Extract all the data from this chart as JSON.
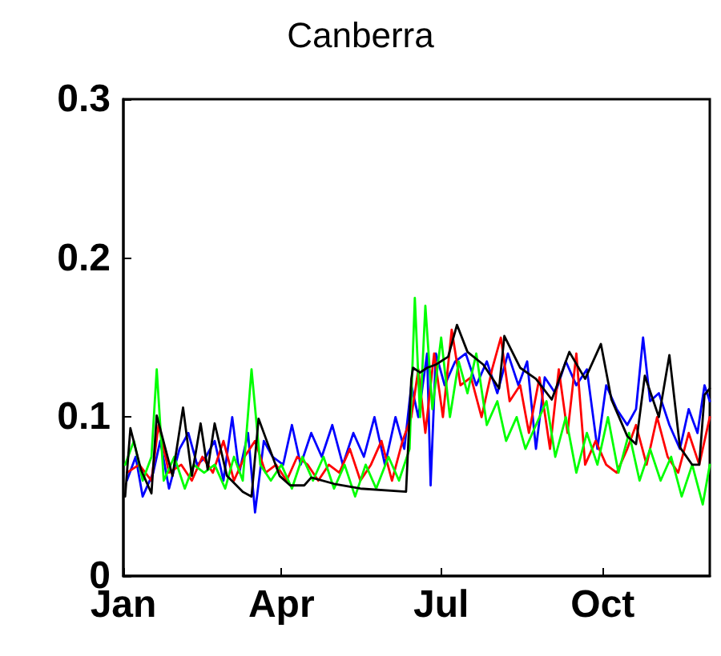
{
  "chart_data": {
    "type": "line",
    "title": "Canberra",
    "xlim": [
      "--01-01",
      "--12-01"
    ],
    "xticks": [
      {
        "value": "--01-01",
        "label": "Jan"
      },
      {
        "value": "--04-01",
        "label": "Apr"
      },
      {
        "value": "--07-01",
        "label": "Jul"
      },
      {
        "value": "--10-01",
        "label": "Oct"
      }
    ],
    "ylim": [
      0,
      0.3
    ],
    "yticks": [
      0,
      0.1,
      0.2,
      0.3
    ],
    "grid": false,
    "marker": "none",
    "line_style": "solid",
    "series": [
      {
        "color": "#0000ff",
        "x": [
          "--01-03",
          "--01-08",
          "--01-12",
          "--01-18",
          "--01-22",
          "--01-27",
          "--02-02",
          "--02-07",
          "--02-12",
          "--02-17",
          "--02-22",
          "--02-27",
          "--03-04",
          "--03-08",
          "--03-13",
          "--03-17",
          "--03-22",
          "--03-27",
          "--04-02",
          "--04-07",
          "--04-12",
          "--04-18",
          "--04-24",
          "--04-30",
          "--05-06",
          "--05-12",
          "--05-18",
          "--05-24",
          "--05-30",
          "--06-05",
          "--06-10",
          "--06-14",
          "--06-18",
          "--06-23",
          "--06-25",
          "--06-28",
          "--07-03",
          "--07-09",
          "--07-15",
          "--07-21",
          "--07-27",
          "--08-02",
          "--08-08",
          "--08-14",
          "--08-19",
          "--08-24",
          "--08-29",
          "--09-04",
          "--09-10",
          "--09-16",
          "--09-22",
          "--09-28",
          "--10-03",
          "--10-09",
          "--10-15",
          "--10-20",
          "--10-24",
          "--10-28",
          "--11-02",
          "--11-08",
          "--11-14",
          "--11-19",
          "--11-24",
          "--11-28",
          "--12-01"
        ],
        "values": [
          0.06,
          0.075,
          0.05,
          0.065,
          0.085,
          0.055,
          0.08,
          0.09,
          0.07,
          0.075,
          0.085,
          0.06,
          0.1,
          0.065,
          0.09,
          0.04,
          0.085,
          0.075,
          0.07,
          0.095,
          0.07,
          0.09,
          0.075,
          0.095,
          0.07,
          0.09,
          0.075,
          0.1,
          0.07,
          0.1,
          0.08,
          0.12,
          0.1,
          0.14,
          0.057,
          0.14,
          0.12,
          0.135,
          0.14,
          0.12,
          0.135,
          0.115,
          0.14,
          0.12,
          0.135,
          0.08,
          0.125,
          0.115,
          0.135,
          0.12,
          0.13,
          0.08,
          0.12,
          0.105,
          0.095,
          0.105,
          0.15,
          0.11,
          0.115,
          0.095,
          0.08,
          0.105,
          0.09,
          0.12,
          0.11
        ]
      },
      {
        "color": "#ff0000",
        "x": [
          "--01-03",
          "--01-10",
          "--01-17",
          "--01-21",
          "--01-27",
          "--02-03",
          "--02-09",
          "--02-15",
          "--02-21",
          "--02-27",
          "--03-05",
          "--03-11",
          "--03-17",
          "--03-23",
          "--03-29",
          "--04-04",
          "--04-10",
          "--04-16",
          "--04-22",
          "--04-28",
          "--05-04",
          "--05-10",
          "--05-16",
          "--05-22",
          "--05-28",
          "--06-03",
          "--06-09",
          "--06-14",
          "--06-18",
          "--06-22",
          "--06-27",
          "--07-02",
          "--07-07",
          "--07-12",
          "--07-18",
          "--07-24",
          "--07-30",
          "--08-04",
          "--08-09",
          "--08-15",
          "--08-20",
          "--08-26",
          "--09-01",
          "--09-06",
          "--09-11",
          "--09-16",
          "--09-21",
          "--09-27",
          "--10-03",
          "--10-09",
          "--10-15",
          "--10-20",
          "--10-26",
          "--11-01",
          "--11-07",
          "--11-13",
          "--11-19",
          "--11-25",
          "--12-01"
        ],
        "values": [
          0.065,
          0.07,
          0.06,
          0.095,
          0.065,
          0.07,
          0.06,
          0.075,
          0.065,
          0.085,
          0.06,
          0.075,
          0.085,
          0.065,
          0.07,
          0.06,
          0.075,
          0.07,
          0.06,
          0.07,
          0.065,
          0.08,
          0.06,
          0.07,
          0.085,
          0.06,
          0.085,
          0.1,
          0.13,
          0.09,
          0.14,
          0.1,
          0.155,
          0.12,
          0.125,
          0.1,
          0.13,
          0.15,
          0.11,
          0.12,
          0.09,
          0.125,
          0.08,
          0.13,
          0.09,
          0.14,
          0.07,
          0.085,
          0.07,
          0.065,
          0.08,
          0.095,
          0.07,
          0.1,
          0.075,
          0.065,
          0.09,
          0.07,
          0.1
        ]
      },
      {
        "color": "#00ff00",
        "x": [
          "--01-02",
          "--01-07",
          "--01-12",
          "--01-17",
          "--01-20",
          "--01-24",
          "--01-30",
          "--02-05",
          "--02-10",
          "--02-16",
          "--02-22",
          "--02-28",
          "--03-05",
          "--03-10",
          "--03-15",
          "--03-20",
          "--03-26",
          "--04-01",
          "--04-07",
          "--04-13",
          "--04-19",
          "--04-25",
          "--05-01",
          "--05-07",
          "--05-13",
          "--05-19",
          "--05-25",
          "--06-01",
          "--06-07",
          "--06-13",
          "--06-16",
          "--06-19",
          "--06-22",
          "--06-26",
          "--07-01",
          "--07-06",
          "--07-11",
          "--07-16",
          "--07-21",
          "--07-27",
          "--08-02",
          "--08-07",
          "--08-13",
          "--08-18",
          "--08-24",
          "--08-30",
          "--09-04",
          "--09-10",
          "--09-16",
          "--09-22",
          "--09-28",
          "--10-04",
          "--10-10",
          "--10-16",
          "--10-22",
          "--10-28",
          "--11-03",
          "--11-09",
          "--11-15",
          "--11-21",
          "--11-27",
          "--12-01"
        ],
        "values": [
          0.07,
          0.085,
          0.06,
          0.075,
          0.13,
          0.06,
          0.075,
          0.055,
          0.07,
          0.065,
          0.07,
          0.055,
          0.075,
          0.06,
          0.13,
          0.07,
          0.06,
          0.07,
          0.055,
          0.075,
          0.06,
          0.075,
          0.055,
          0.07,
          0.05,
          0.07,
          0.055,
          0.075,
          0.06,
          0.08,
          0.175,
          0.1,
          0.17,
          0.105,
          0.15,
          0.1,
          0.135,
          0.115,
          0.14,
          0.095,
          0.11,
          0.085,
          0.1,
          0.08,
          0.095,
          0.11,
          0.075,
          0.1,
          0.065,
          0.09,
          0.07,
          0.1,
          0.065,
          0.09,
          0.06,
          0.08,
          0.06,
          0.075,
          0.05,
          0.07,
          0.045,
          0.07
        ]
      },
      {
        "color": "#000000",
        "x": [
          "--01-02",
          "--01-05",
          "--01-11",
          "--01-17",
          "--01-20",
          "--01-29",
          "--02-04",
          "--02-09",
          "--02-14",
          "--02-18",
          "--02-22",
          "--03-01",
          "--03-10",
          "--03-15",
          "--03-19",
          "--03-24",
          "--03-31",
          "--04-06",
          "--04-14",
          "--04-18",
          "--05-01",
          "--05-16",
          "--06-11",
          "--06-14",
          "--06-15",
          "--06-19",
          "--06-23",
          "--06-28",
          "--07-05",
          "--07-10",
          "--07-16",
          "--07-25",
          "--08-03",
          "--08-06",
          "--08-15",
          "--08-24",
          "--09-02",
          "--09-12",
          "--09-21",
          "--09-30",
          "--10-06",
          "--10-15",
          "--10-20",
          "--10-25",
          "--11-02",
          "--11-08",
          "--11-14",
          "--11-21",
          "--11-25",
          "--11-28",
          "--12-01"
        ],
        "values": [
          0.05,
          0.093,
          0.067,
          0.052,
          0.101,
          0.063,
          0.106,
          0.063,
          0.096,
          0.067,
          0.096,
          0.063,
          0.053,
          0.05,
          0.099,
          0.084,
          0.063,
          0.057,
          0.057,
          0.062,
          0.058,
          0.055,
          0.053,
          0.124,
          0.131,
          0.128,
          0.131,
          0.133,
          0.138,
          0.158,
          0.141,
          0.133,
          0.118,
          0.151,
          0.131,
          0.124,
          0.111,
          0.141,
          0.124,
          0.146,
          0.111,
          0.088,
          0.083,
          0.126,
          0.1,
          0.139,
          0.081,
          0.07,
          0.07,
          0.114,
          0.118
        ]
      }
    ]
  }
}
